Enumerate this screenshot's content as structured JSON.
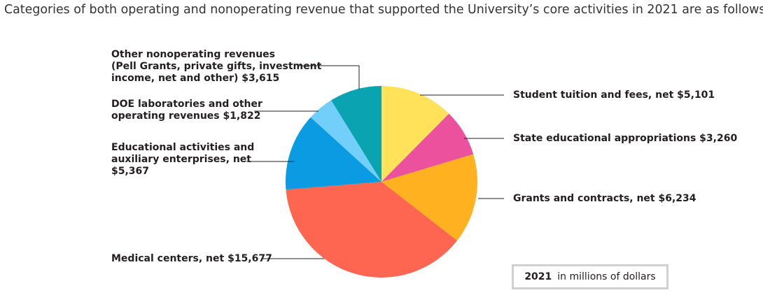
{
  "intro_text": "Categories of both operating and nonoperating revenue that supported the University’s core activities in 2021 are as follows:",
  "key": {
    "year": "2021",
    "unit": "in millions of dollars"
  },
  "chart_data": {
    "type": "pie",
    "unit": "in millions of dollars",
    "year": "2021",
    "start_angle_deg": 0,
    "direction": "clockwise",
    "slices": [
      {
        "lines": [
          "Student tuition and fees, net  $5,101"
        ],
        "value": 5101,
        "color": "#ffe15a"
      },
      {
        "lines": [
          "State educational appropriations  $3,260"
        ],
        "value": 3260,
        "color": "#eb519c"
      },
      {
        "lines": [
          "Grants and contracts, net  $6,234"
        ],
        "value": 6234,
        "color": "#ffb11f"
      },
      {
        "lines": [
          "Medical centers, net  $15,677"
        ],
        "value": 15677,
        "color": "#ff6651"
      },
      {
        "lines": [
          "Educational activities and",
          "auxiliary enterprises, net",
          "$5,367"
        ],
        "value": 5367,
        "color": "#0a9be3"
      },
      {
        "lines": [
          "DOE laboratories and other",
          "operating revenues  $1,822"
        ],
        "value": 1822,
        "color": "#72cff9"
      },
      {
        "lines": [
          "Other nonoperating revenues",
          "(Pell Grants, private gifts, investment",
          "income, net and other)  $3,615"
        ],
        "value": 3615,
        "color": "#0aa3b2"
      }
    ]
  }
}
